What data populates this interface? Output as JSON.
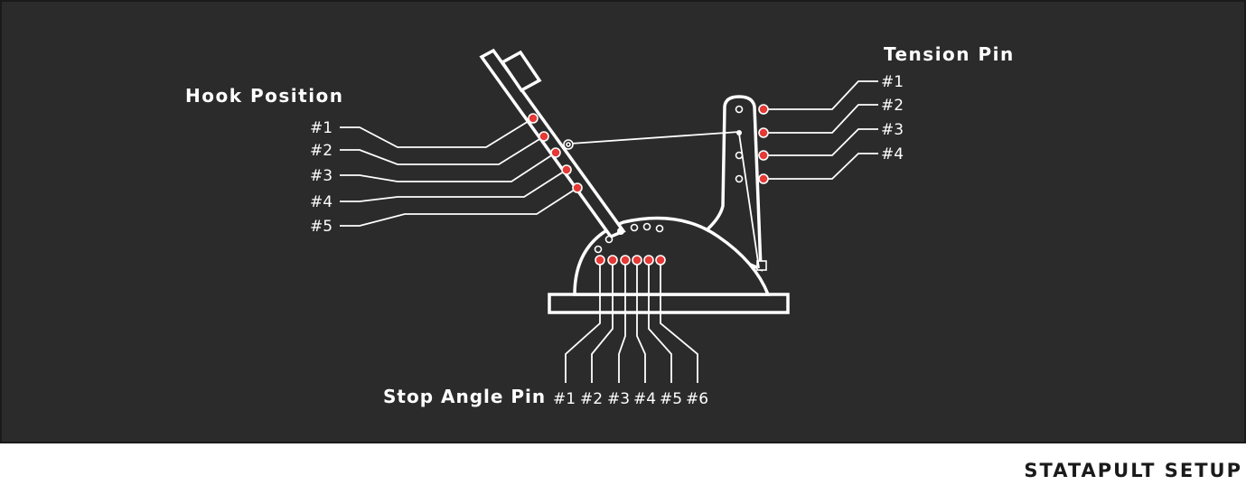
{
  "diagram": {
    "hook_position": {
      "title": "Hook Position",
      "labels": [
        "#1",
        "#2",
        "#3",
        "#4",
        "#5"
      ]
    },
    "tension_pin": {
      "title": "Tension Pin",
      "labels": [
        "#1",
        "#2",
        "#3",
        "#4"
      ]
    },
    "stop_angle_pin": {
      "title": "Stop Angle Pin",
      "labels": [
        "#1",
        "#2",
        "#3",
        "#4",
        "#5",
        "#6"
      ]
    }
  },
  "footer": {
    "title": "STATAPULT SETUP"
  },
  "colors": {
    "board": "#2b2b2b",
    "pin": "#e53935",
    "line": "#ffffff",
    "title": "#1a1a1a"
  }
}
